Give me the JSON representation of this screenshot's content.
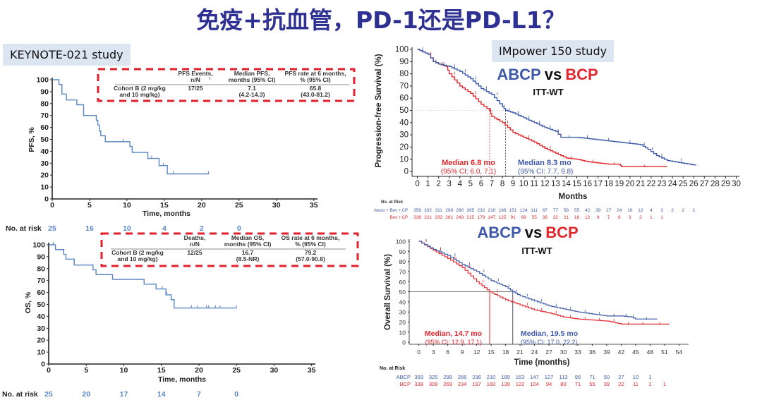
{
  "title": "免疫+抗血管，PD-1还是PD-L1？",
  "left_panel": {
    "study_label": "KEYNOTE-021 study",
    "pfs_table": {
      "headers": [
        "",
        "PFS Events, n/N",
        "Median PFS, months (95% CI)",
        "PFS rate at 6 months, % (95% CI)"
      ],
      "row_label_line1": "Cohort B (2 mg/kg",
      "row_label_line2": "and 10 mg/kg)",
      "h1_line1": "PFS Events,",
      "h1_line2": "n/N",
      "h2_line1": "Median PFS,",
      "h2_line2": "months (95% CI)",
      "h3_line1": "PFS rate at 6 months,",
      "h3_line2": "% (95% CI)",
      "events": "17/25",
      "median": "7.1",
      "median_ci": "(4.2-14.3)",
      "rate": "65.8",
      "rate_ci": "(43.0-81.2)"
    },
    "os_table": {
      "row_label_line1": "Cohort B (2 mg/kg",
      "row_label_line2": "and 10 mg/kg)",
      "h1_line1": "Deaths,",
      "h1_line2": "n/N",
      "h2_line1": "Median OS,",
      "h2_line2": "months (95% CI)",
      "h3_line1": "OS rate at 6 months,",
      "h3_line2": "% (95% CI)",
      "deaths": "12/25",
      "median": "16.7",
      "median_ci": "(8.5-NR)",
      "rate": "79.2",
      "rate_ci": "(57.0-90.8)"
    },
    "pfs_ylabel": "PFS, %",
    "os_ylabel": "OS, %",
    "xlabel": "Time, months",
    "risk_label": "No. at risk"
  },
  "right_panel": {
    "study_label": "IMpower 150 study",
    "comparison_a": "ABCP",
    "comparison_vs": "vs",
    "comparison_b": "BCP",
    "population": "ITT-WT",
    "pfs_ylabel": "Progression-free Survival (%)",
    "pfs_xlabel": "Months",
    "pfs_median_red": "Median 6.8 mo",
    "pfs_median_red_ci": "(95% CI: 6.0, 7.1)",
    "pfs_median_blue": "Median 8.3 mo",
    "pfs_median_blue_ci": "(95% CI: 7.7, 9.8)",
    "pfs_risk_title": "No. at Risk",
    "pfs_risk_arm_a": "Atezo + Bev + CP",
    "pfs_risk_arm_b": "Bev + CP",
    "os_ylabel": "Overall Survival (%)",
    "os_xlabel": "Time (months)",
    "os_median_red": "Median, 14.7 mo",
    "os_median_red_ci": "(95% CI: 12.9, 17.1)",
    "os_median_blue": "Median, 19.5 mo",
    "os_median_blue_ci": "(95% CI: 17.0, 22.2)",
    "os_risk_title": "No. at Risk",
    "os_risk_arm_a": "ABCP",
    "os_risk_arm_b": "BCP"
  },
  "colors": {
    "title": "#2E3192",
    "blue_curve": "#3F5AA8",
    "red_curve": "#E0282E",
    "kn_curve": "#5B86C2",
    "dash_box": "#E0202A",
    "label_bg": "#DCE6F2"
  },
  "chart_data": [
    {
      "type": "line",
      "title": "KEYNOTE-021 Cohort B PFS",
      "xlabel": "Time, months",
      "ylabel": "PFS, %",
      "xlim": [
        0,
        35
      ],
      "ylim": [
        0,
        100
      ],
      "xticks": [
        0,
        5,
        10,
        15,
        20,
        25,
        30,
        35
      ],
      "yticks": [
        0,
        10,
        20,
        30,
        40,
        50,
        60,
        70,
        80,
        90,
        100
      ],
      "series": [
        {
          "name": "Cohort B",
          "step": true,
          "x": [
            0,
            0.9,
            1.3,
            1.9,
            3.3,
            4.2,
            5.9,
            6.1,
            6.3,
            6.5,
            7.1,
            10.4,
            10.7,
            12.8,
            14.3,
            15.4,
            21
          ],
          "y": [
            100,
            96,
            88,
            83,
            79,
            70,
            66,
            62,
            57,
            53,
            48,
            44,
            39,
            34,
            28,
            21,
            21
          ]
        }
      ],
      "risk_table": {
        "x": [
          0,
          5,
          10,
          15,
          20,
          25
        ],
        "values": [
          25,
          16,
          10,
          4,
          2,
          0
        ]
      }
    },
    {
      "type": "line",
      "title": "KEYNOTE-021 Cohort B OS",
      "xlabel": "Time, months",
      "ylabel": "OS, %",
      "xlim": [
        0,
        35
      ],
      "ylim": [
        0,
        100
      ],
      "xticks": [
        0,
        5,
        10,
        15,
        20,
        25,
        30,
        35
      ],
      "yticks": [
        0,
        10,
        20,
        30,
        40,
        50,
        60,
        70,
        80,
        90,
        100
      ],
      "series": [
        {
          "name": "Cohort B",
          "step": true,
          "x": [
            0,
            0.9,
            2.0,
            2.3,
            3.4,
            5.9,
            6.3,
            8.5,
            12.7,
            14.3,
            15.6,
            16.3,
            16.7,
            25
          ],
          "y": [
            100,
            96,
            92,
            88,
            83,
            79,
            75,
            71,
            67,
            63,
            58,
            54,
            47,
            47
          ]
        }
      ],
      "risk_table": {
        "x": [
          0,
          5,
          10,
          15,
          20,
          25
        ],
        "values": [
          25,
          20,
          17,
          14,
          7,
          0
        ]
      }
    },
    {
      "type": "line",
      "title": "IMpower150 PFS ITT-WT: ABCP vs BCP",
      "xlabel": "Months",
      "ylabel": "Progression-free Survival (%)",
      "xlim": [
        0,
        30
      ],
      "ylim": [
        0,
        100
      ],
      "xticks": [
        0,
        1,
        2,
        3,
        4,
        5,
        6,
        7,
        8,
        9,
        10,
        11,
        12,
        13,
        14,
        15,
        16,
        17,
        18,
        19,
        20,
        21,
        22,
        23,
        24,
        25,
        26,
        27,
        28,
        29,
        30
      ],
      "yticks": [
        0,
        10,
        20,
        30,
        40,
        50,
        60,
        70,
        80,
        90,
        100
      ],
      "series": [
        {
          "name": "Atezo + Bev + CP (ABCP)",
          "color": "#3F5AA8",
          "x": [
            0,
            1,
            1.5,
            2,
            3,
            4,
            5,
            6,
            7,
            8,
            8.3,
            9,
            10,
            11,
            12,
            13,
            13.5,
            15,
            17,
            19,
            21,
            21.7,
            22.5,
            23.5,
            26.2
          ],
          "y": [
            100,
            96,
            90,
            88,
            86,
            82,
            76,
            68,
            63,
            53,
            50,
            48,
            44,
            40,
            36,
            33,
            28,
            28,
            26,
            24,
            22,
            18,
            13,
            9,
            5
          ]
        },
        {
          "name": "Bev + CP (BCP)",
          "color": "#E0282E",
          "x": [
            0,
            1,
            1.5,
            2,
            2.7,
            3,
            4,
            5,
            6,
            6.8,
            7,
            8,
            9,
            10,
            11,
            12,
            13,
            14,
            15,
            16,
            17,
            18,
            19,
            19.2,
            23.5
          ],
          "y": [
            100,
            96,
            90,
            88,
            86,
            80,
            70,
            64,
            55,
            50,
            45,
            40,
            32,
            28,
            24,
            19,
            15,
            11,
            10,
            8,
            7,
            6,
            6,
            4,
            4
          ]
        }
      ],
      "medians": [
        {
          "arm": "BCP",
          "value": 6.8,
          "ci": [
            6.0,
            7.1
          ]
        },
        {
          "arm": "ABCP",
          "value": 8.3,
          "ci": [
            7.7,
            9.8
          ]
        }
      ],
      "risk_table": {
        "x": [
          0,
          1,
          2,
          3,
          4,
          5,
          6,
          7,
          8,
          9,
          10,
          11,
          12,
          13,
          14,
          15,
          16,
          17,
          18,
          19,
          20,
          21,
          22,
          23,
          24,
          25,
          26,
          27
        ],
        "Atezo + Bev + CP": [
          356,
          332,
          311,
          298,
          290,
          265,
          232,
          210,
          186,
          151,
          124,
          111,
          67,
          77,
          58,
          55,
          42,
          39,
          27,
          24,
          16,
          12,
          4,
          3,
          2,
          2,
          2
        ],
        "Bev + CP": [
          336,
          321,
          292,
          261,
          243,
          215,
          179,
          147,
          125,
          91,
          69,
          55,
          39,
          32,
          21,
          18,
          12,
          9,
          7,
          6,
          3,
          2,
          1,
          1
        ]
      }
    },
    {
      "type": "line",
      "title": "IMpower150 OS ITT-WT: ABCP vs BCP",
      "xlabel": "Time (months)",
      "ylabel": "Overall Survival (%)",
      "xlim": [
        0,
        54
      ],
      "ylim": [
        0,
        100
      ],
      "xticks": [
        0,
        3,
        6,
        9,
        12,
        15,
        18,
        21,
        24,
        27,
        30,
        33,
        36,
        39,
        42,
        45,
        48,
        51,
        54
      ],
      "yticks": [
        0,
        10,
        20,
        30,
        40,
        50,
        60,
        70,
        80,
        90,
        100
      ],
      "series": [
        {
          "name": "ABCP",
          "color": "#3F5AA8",
          "x": [
            0,
            3,
            6,
            9,
            12,
            15,
            18,
            19.5,
            21,
            24,
            27,
            30,
            33,
            36,
            39,
            42,
            44,
            45,
            49.5
          ],
          "y": [
            100,
            92,
            86,
            77,
            70,
            61,
            55,
            50,
            46,
            41,
            36,
            33,
            30,
            28,
            26,
            26,
            25,
            23,
            23
          ]
        },
        {
          "name": "BCP",
          "color": "#E0282E",
          "x": [
            0,
            3,
            6,
            9,
            12,
            14.7,
            18,
            21,
            24,
            27,
            30,
            33,
            36,
            39,
            42,
            45,
            48,
            52
          ],
          "y": [
            100,
            91,
            83,
            74,
            60,
            50,
            42,
            37,
            32,
            29,
            25,
            23,
            22,
            21,
            18,
            18,
            18,
            18
          ]
        }
      ],
      "medians": [
        {
          "arm": "BCP",
          "value": 14.7,
          "ci": [
            12.9,
            17.1
          ]
        },
        {
          "arm": "ABCP",
          "value": 19.5,
          "ci": [
            17.0,
            22.2
          ]
        }
      ],
      "risk_table": {
        "x": [
          0,
          3,
          6,
          9,
          12,
          15,
          18,
          21,
          24,
          27,
          30,
          33,
          36,
          39,
          42,
          45,
          48,
          51
        ],
        "ABCP": [
          359,
          325,
          298,
          266,
          236,
          210,
          189,
          163,
          147,
          127,
          113,
          95,
          71,
          50,
          27,
          10,
          1
        ],
        "BCP": [
          338,
          309,
          269,
          234,
          197,
          160,
          139,
          122,
          104,
          94,
          80,
          71,
          55,
          39,
          22,
          11,
          1,
          1
        ]
      }
    }
  ]
}
